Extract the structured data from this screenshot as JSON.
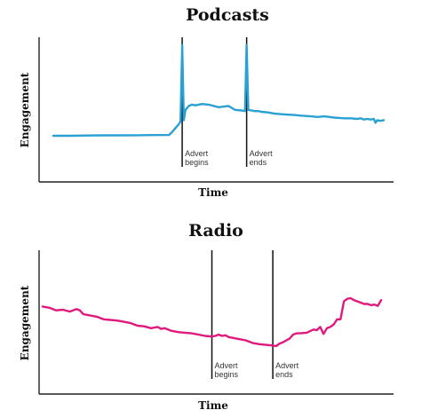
{
  "chart_data": [
    {
      "type": "line",
      "title": "Podcasts",
      "xlabel": "Time",
      "ylabel": "Engagement",
      "xlim": [
        0,
        100
      ],
      "ylim": [
        0,
        100
      ],
      "grid": false,
      "color": "#2aa1d3",
      "series": [
        {
          "x": [
            0,
            5,
            10,
            15,
            20,
            25,
            30,
            35,
            36,
            37,
            38,
            38.5,
            39,
            39.5,
            40,
            41,
            42,
            43,
            45,
            47,
            50,
            53,
            55,
            57,
            58,
            58.5,
            59,
            60,
            61,
            62,
            63,
            65,
            67,
            70,
            73,
            75,
            78,
            80,
            82,
            85,
            88,
            90,
            92,
            93,
            94,
            95,
            96,
            97,
            97.5,
            98,
            99,
            100
          ],
          "y": [
            24,
            24,
            24.2,
            24.3,
            24.3,
            24.4,
            24.5,
            24.6,
            27,
            30,
            33,
            35,
            94,
            36,
            44,
            47,
            48,
            47.5,
            48.5,
            48,
            46,
            47,
            44,
            43.5,
            43,
            94,
            44,
            43.5,
            43,
            43,
            42.5,
            42,
            41,
            40.5,
            40,
            39.5,
            39,
            38.5,
            39,
            38,
            37.5,
            37.5,
            37,
            37.5,
            36.5,
            37,
            36.5,
            37,
            34,
            36,
            35.5,
            36
          ]
        }
      ],
      "annotations": [
        {
          "text": [
            "Advert",
            "begins"
          ],
          "x": 39
        },
        {
          "text": [
            "Advert",
            "ends"
          ],
          "x": 58.5
        }
      ]
    },
    {
      "type": "line",
      "title": "Radio",
      "xlabel": "Time",
      "ylabel": "Engagement",
      "xlim": [
        0,
        100
      ],
      "ylim": [
        0,
        100
      ],
      "grid": false,
      "color": "#e0197d",
      "series": [
        {
          "x": [
            0,
            2,
            4,
            6,
            8,
            10,
            11,
            12,
            14,
            16,
            18,
            20,
            22,
            24,
            26,
            28,
            30,
            32,
            34,
            35,
            36,
            38,
            40,
            42,
            44,
            46,
            48,
            50,
            51,
            52,
            53,
            54,
            55,
            56,
            58,
            60,
            62,
            64,
            66,
            68,
            69,
            70,
            71,
            72,
            73,
            74,
            75,
            76,
            78,
            80,
            81,
            82,
            83,
            84,
            85,
            86,
            87,
            88,
            89,
            90,
            91,
            92,
            93,
            94,
            95,
            96,
            97,
            98,
            99,
            100
          ],
          "y": [
            56,
            55,
            53,
            53.5,
            52,
            54,
            53,
            50,
            49,
            48,
            46,
            45.5,
            45,
            44,
            43,
            41,
            40.5,
            39,
            40,
            38.5,
            39,
            37,
            36,
            35.5,
            35,
            34,
            33,
            32.5,
            33,
            34,
            33,
            33.5,
            32,
            31.5,
            30.5,
            29.5,
            27.5,
            26.5,
            26,
            25.5,
            25,
            27,
            28,
            29.5,
            31,
            34,
            35,
            35,
            35.5,
            38,
            37.5,
            40,
            34.5,
            39,
            40,
            42,
            46,
            46,
            60,
            62,
            62.5,
            61,
            60,
            59,
            58,
            58,
            57,
            57.5,
            56.5,
            61
          ]
        }
      ],
      "annotations": [
        {
          "text": [
            "Advert",
            "begins"
          ],
          "x": 50
        },
        {
          "text": [
            "Advert",
            "ends"
          ],
          "x": 68
        }
      ]
    }
  ]
}
